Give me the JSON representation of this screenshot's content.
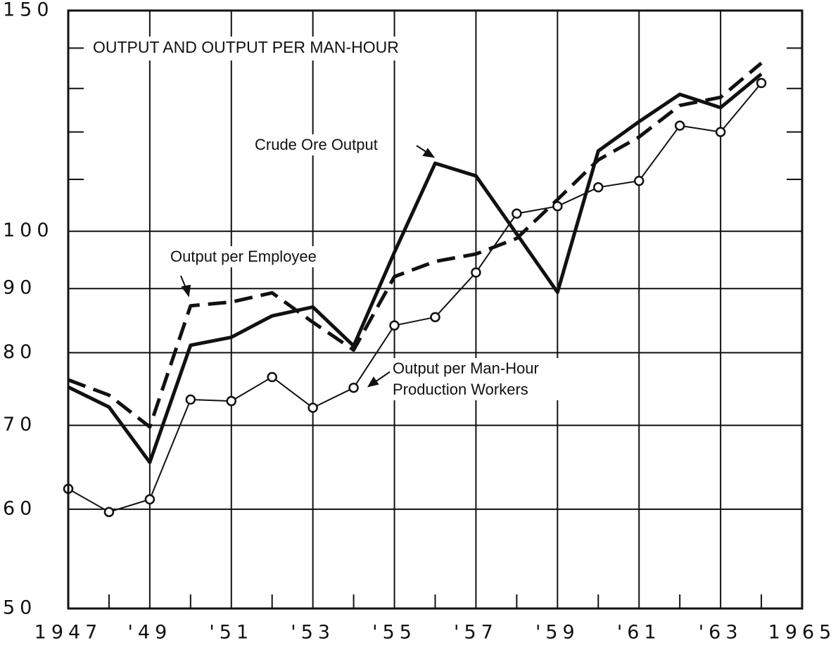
{
  "chart_data": {
    "type": "line",
    "title": "OUTPUT AND OUTPUT PER MAN-HOUR",
    "log_scale": true,
    "x": [
      1947,
      1948,
      1949,
      1950,
      1951,
      1952,
      1953,
      1954,
      1955,
      1956,
      1957,
      1958,
      1959,
      1960,
      1961,
      1962,
      1963,
      1964
    ],
    "series": [
      {
        "name": "Crude Ore Output",
        "color": "#111111",
        "style": "solid",
        "values": [
          75.1,
          72.4,
          65.4,
          81.1,
          82.3,
          85.6,
          87,
          81,
          96.2,
          113.3,
          110.7,
          99.5,
          89.4,
          115.9,
          122.3,
          128.6,
          125.5,
          133.5
        ]
      },
      {
        "name": "Output per Employee",
        "color": "#111111",
        "style": "dashed",
        "values": [
          76.1,
          74,
          69.8,
          87.2,
          87.8,
          89.3,
          84.6,
          80.4,
          92,
          94.6,
          95.9,
          98.7,
          106,
          114,
          118.9,
          126,
          127.9,
          136.2
        ]
      },
      {
        "name": "Output per Man-Hour Production Workers",
        "color": "#111111",
        "style": "thin",
        "marker": "circle",
        "values": [
          62.3,
          59.7,
          61.1,
          73.4,
          73.2,
          76.5,
          72.3,
          75,
          84.1,
          85.4,
          92.7,
          103.3,
          104.7,
          108.4,
          109.7,
          121.4,
          120,
          131.3
        ]
      }
    ],
    "xlim": [
      1947,
      1965
    ],
    "xticks": [
      {
        "value": 1947,
        "label": "1947"
      },
      {
        "value": 1949,
        "label": "'49"
      },
      {
        "value": 1951,
        "label": "'51"
      },
      {
        "value": 1953,
        "label": "'53"
      },
      {
        "value": 1955,
        "label": "'55"
      },
      {
        "value": 1957,
        "label": "'57"
      },
      {
        "value": 1959,
        "label": "'59"
      },
      {
        "value": 1961,
        "label": "'61"
      },
      {
        "value": 1963,
        "label": "'63"
      },
      {
        "value": 1965,
        "label": "1965"
      }
    ],
    "xticks_minor": [
      1948,
      1950,
      1952,
      1954,
      1956,
      1958,
      1960,
      1962,
      1964
    ],
    "ylim": [
      50,
      150
    ],
    "yticks": [
      50,
      60,
      70,
      80,
      90,
      100,
      150
    ],
    "yticks_minor": [
      110,
      120,
      130,
      140
    ],
    "grid": true
  }
}
